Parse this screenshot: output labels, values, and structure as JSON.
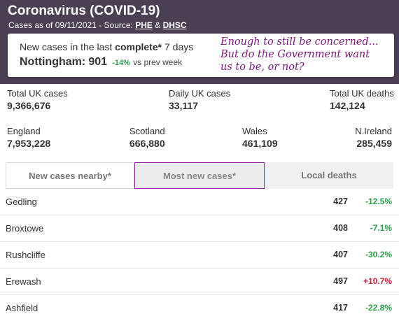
{
  "header": {
    "title": "Coronavirus (COVID-19)",
    "subtitle_prefix": "Cases as of 09/11/2021 - Source: ",
    "source1": "PHE",
    "source_join": " & ",
    "source2": "DHSC"
  },
  "card": {
    "line1_prefix": "New cases in the last ",
    "line1_bold": "complete*",
    "line1_suffix": " 7 days",
    "place": "Nottingham:",
    "count": "901",
    "pct": "-14%",
    "vs": "vs prev week"
  },
  "annotation": {
    "line1": "Enough to still be concerned...",
    "line2": "But do the Government want",
    "line3": "us to be, or not?"
  },
  "uk_stats": {
    "total_cases_label": "Total UK cases",
    "total_cases_value": "9,366,676",
    "daily_cases_label": "Daily UK cases",
    "daily_cases_value": "33,117",
    "total_deaths_label": "Total UK deaths",
    "total_deaths_value": "142,124"
  },
  "nations": {
    "england_label": "England",
    "england_value": "7,953,228",
    "scotland_label": "Scotland",
    "scotland_value": "666,880",
    "wales_label": "Wales",
    "wales_value": "461,109",
    "ni_label": "N.Ireland",
    "ni_value": "285,459"
  },
  "tabs": {
    "nearby": "New cases nearby*",
    "most": "Most new cases*",
    "deaths": "Local deaths",
    "active": "most"
  },
  "rows": [
    {
      "name": "Gedling",
      "count": "427",
      "change": "-12.5%"
    },
    {
      "name": "Broxtowe",
      "count": "408",
      "change": "-7.1%"
    },
    {
      "name": "Rushcliffe",
      "count": "407",
      "change": "-30.2%"
    },
    {
      "name": "Erewash",
      "count": "497",
      "change": "+10.7%"
    },
    {
      "name": "Ashfield",
      "count": "417",
      "change": "-22.8%"
    }
  ],
  "colors": {
    "header_bg": "#4b3f52",
    "positive_change": "#d0243c",
    "negative_change": "#2e9e4e",
    "active_tab_border": "#8a2c96",
    "annotation": "#7a1a7a"
  }
}
